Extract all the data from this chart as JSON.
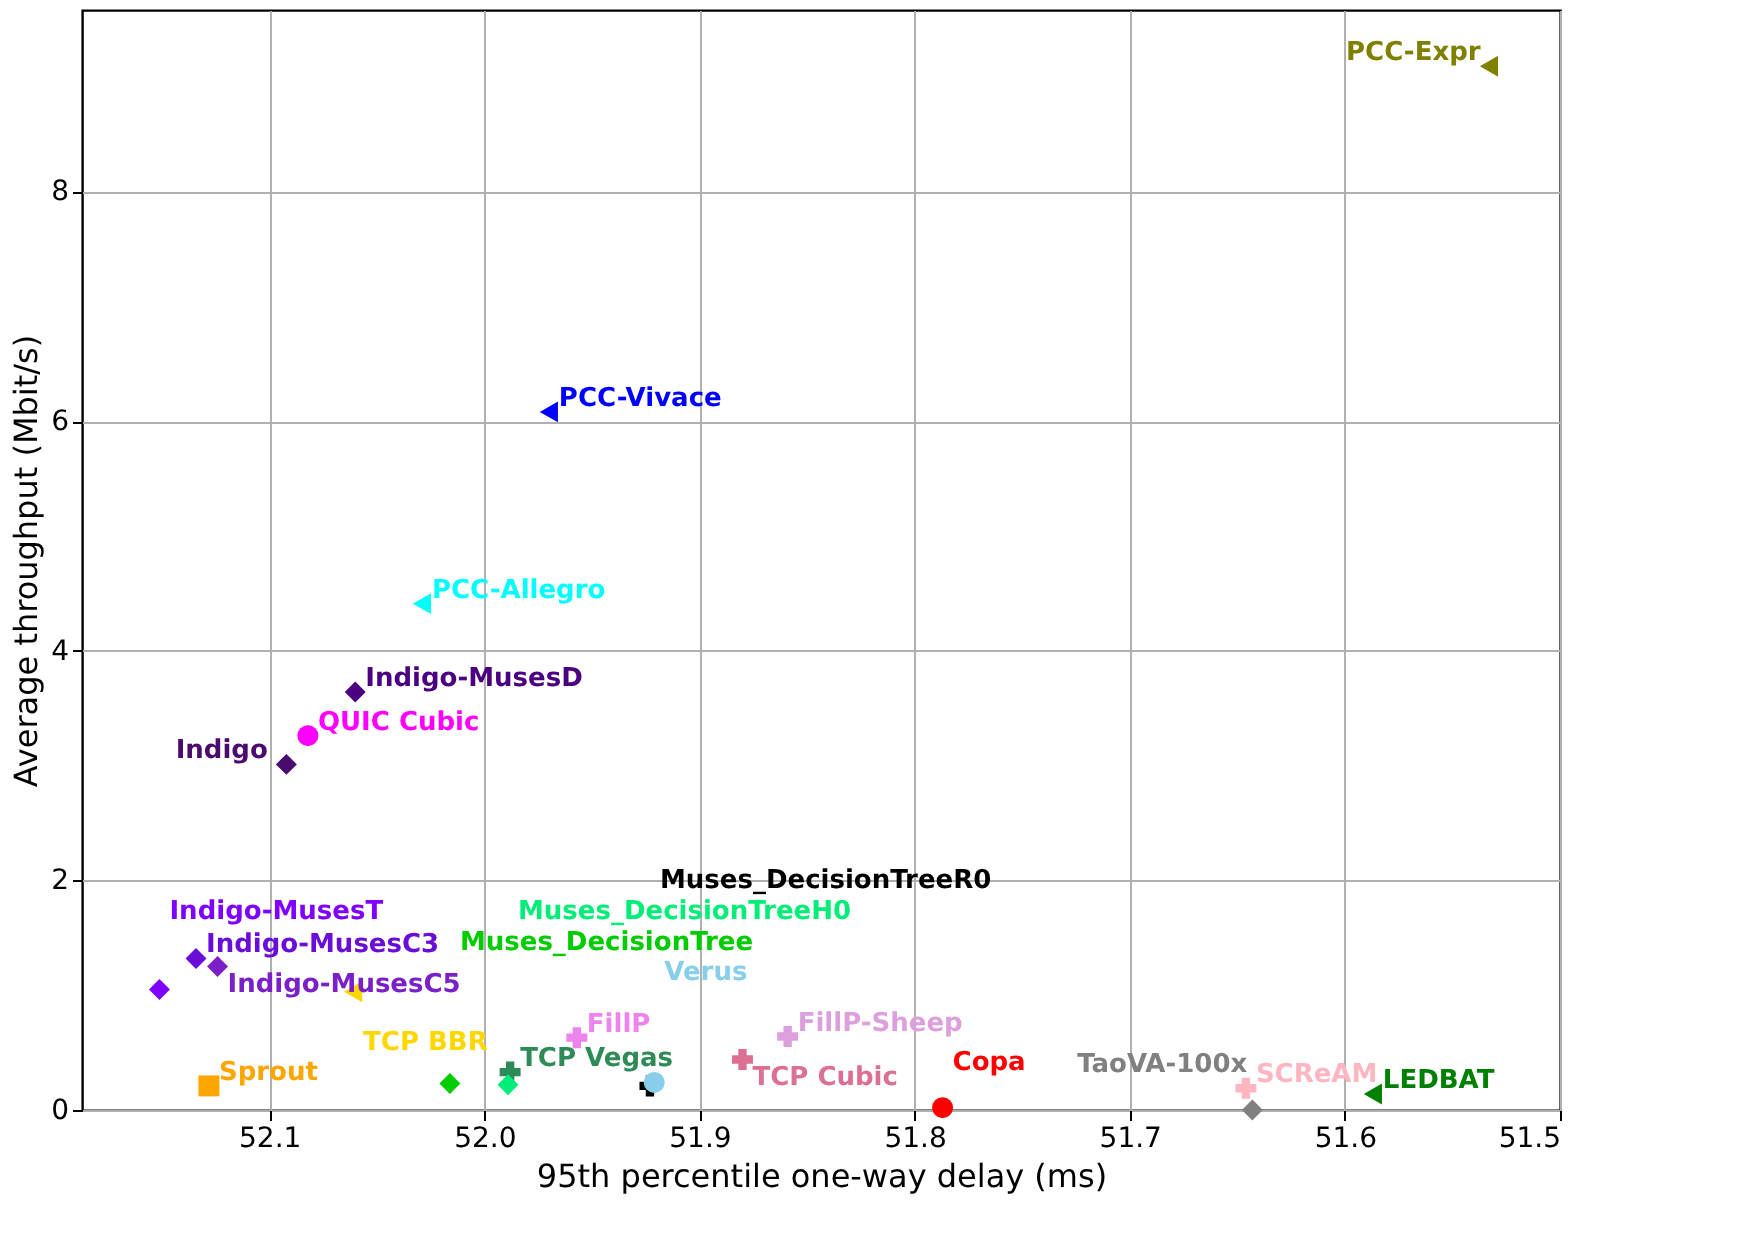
{
  "chart_data": {
    "type": "scatter",
    "xlabel": "95th percentile one-way delay (ms)",
    "ylabel": "Average throughput (Mbit/s)",
    "xlim": [
      52.187,
      51.5
    ],
    "xticks": [
      52.1,
      {
        "value": 52.0,
        "label": "52.0"
      },
      51.9,
      51.8,
      51.7,
      51.6,
      51.5
    ],
    "ylim": [
      0,
      9.58
    ],
    "yticks": [
      0,
      2,
      4,
      6,
      8
    ],
    "grid": true,
    "legend": false,
    "series": [
      {
        "name": "PCC-Expr",
        "color": "#808000",
        "marker": "triangle",
        "x": [
          51.533
        ],
        "values": [
          9.09
        ]
      },
      {
        "name": "PCC-Vivace",
        "color": "#0000ff",
        "marker": "triangle",
        "x": [
          51.97
        ],
        "values": [
          6.08
        ]
      },
      {
        "name": "PCC-Allegro",
        "color": "#00ffff",
        "marker": "triangle",
        "x": [
          52.029
        ],
        "values": [
          4.41
        ]
      },
      {
        "name": "Indigo-MusesD",
        "color": "#4b0082",
        "marker": "diamond",
        "x": [
          52.06
        ],
        "values": [
          3.64
        ]
      },
      {
        "name": "QUIC Cubic",
        "color": "#ff00ff",
        "marker": "circle",
        "x": [
          52.082
        ],
        "values": [
          3.26
        ]
      },
      {
        "name": "Indigo",
        "color": "#4b0a6e",
        "marker": "diamond",
        "x": [
          52.092
        ],
        "values": [
          3.01
        ]
      },
      {
        "name": "Indigo-MusesC3",
        "color": "#6a0dd8",
        "marker": "diamond",
        "x": [
          52.134
        ],
        "values": [
          1.32
        ]
      },
      {
        "name": "Indigo-MusesC5",
        "color": "#7b1fc8",
        "marker": "diamond",
        "x": [
          52.124
        ],
        "values": [
          1.25
        ]
      },
      {
        "name": "Indigo-MusesT",
        "color": "#8000ff",
        "marker": "diamond",
        "x": [
          52.151
        ],
        "values": [
          1.05
        ]
      },
      {
        "name": "TCP BBR",
        "color": "#ffd700",
        "marker": "triangle",
        "x": [
          52.061
        ],
        "values": [
          1.03
        ]
      },
      {
        "name": "Sprout",
        "color": "#ffa500",
        "marker": "square",
        "x": [
          52.128
        ],
        "values": [
          0.21
        ]
      },
      {
        "name": "FillP",
        "color": "#ee82ee",
        "marker": "cross",
        "x": [
          51.957
        ],
        "values": [
          0.63
        ]
      },
      {
        "name": "FillP-Sheep",
        "color": "#dda0dd",
        "marker": "cross",
        "x": [
          51.859
        ],
        "values": [
          0.64
        ]
      },
      {
        "name": "Muses_DecisionTree",
        "color": "#00cc00",
        "marker": "diamond",
        "x": [
          52.016
        ],
        "values": [
          0.23
        ]
      },
      {
        "name": "Muses_DecisionTreeH0",
        "color": "#00ee77",
        "marker": "diamond",
        "x": [
          51.989
        ],
        "values": [
          0.22
        ]
      },
      {
        "name": "TCP Vegas",
        "color": "#2e8b57",
        "marker": "cross",
        "x": [
          51.988
        ],
        "values": [
          0.33
        ]
      },
      {
        "name": "Verus",
        "color": "#87ceeb",
        "marker": "circle",
        "x": [
          51.921
        ],
        "values": [
          0.24
        ]
      },
      {
        "name": "Muses_DecisionTreeR0",
        "color": "#000000",
        "marker": "cross",
        "x": [
          51.923
        ],
        "values": [
          0.21
        ]
      },
      {
        "name": "TCP Cubic",
        "color": "#db7093",
        "marker": "cross",
        "x": [
          51.88
        ],
        "values": [
          0.44
        ]
      },
      {
        "name": "Copa",
        "color": "#ff0000",
        "marker": "circle",
        "x": [
          51.787
        ],
        "values": [
          0.02
        ]
      },
      {
        "name": "SCReAM",
        "color": "#ffb6c1",
        "marker": "cross",
        "x": [
          51.646
        ],
        "values": [
          0.19
        ]
      },
      {
        "name": "TaoVA-100x",
        "color": "#808080",
        "marker": "diamond",
        "x": [
          51.643
        ],
        "values": [
          0.0
        ]
      },
      {
        "name": "LEDBAT",
        "color": "#008000",
        "marker": "triangle",
        "x": [
          51.587
        ],
        "values": [
          0.14
        ]
      }
    ]
  }
}
